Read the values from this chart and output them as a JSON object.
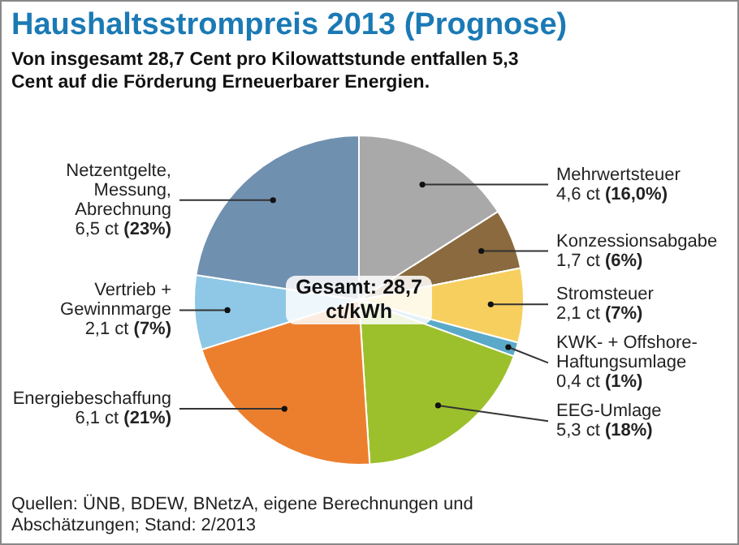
{
  "chart_data": {
    "type": "pie",
    "title": "Haushaltsstrompreis 2013 (Prognose)",
    "subtitle": "Von insgesamt 28,7 Cent pro Kilowattstunde entfallen 5,3 Cent auf die Förderung Erneuerbarer Energien.",
    "categories": [
      "Mehrwertsteuer",
      "Konzessionsabgabe",
      "Stromsteuer",
      "KWK- + Offshore-Haftungsumlage",
      "EEG-Umlage",
      "Energiebeschaffung",
      "Vertrieb + Gewinnmarge",
      "Netzentgelte, Messung, Abrechnung"
    ],
    "values": [
      4.6,
      1.7,
      2.1,
      0.4,
      5.3,
      6.1,
      2.1,
      6.5
    ],
    "value_labels": [
      "4,6 ct (16,0%)",
      "1,7 ct (6%)",
      "2,1 ct (7%)",
      "0,4 ct (1%)",
      "5,3 ct (18%)",
      "6,1 ct (21%)",
      "2,1 ct (7%)",
      "6,5 ct (23%)"
    ],
    "colors": [
      "#a9a9a9",
      "#8a6a3e",
      "#f6cf5f",
      "#5aa9c9",
      "#9cc02c",
      "#ec7f2e",
      "#8fc8e6",
      "#7090b0"
    ],
    "annotations": [
      "Gesamt: 28,7 ct/kWh",
      "Quellen:  ÜNB, BDEW, BNetzA, eigene Berechnungen und Abschätzungen; Stand: 2/2013"
    ],
    "legend": false
  }
}
